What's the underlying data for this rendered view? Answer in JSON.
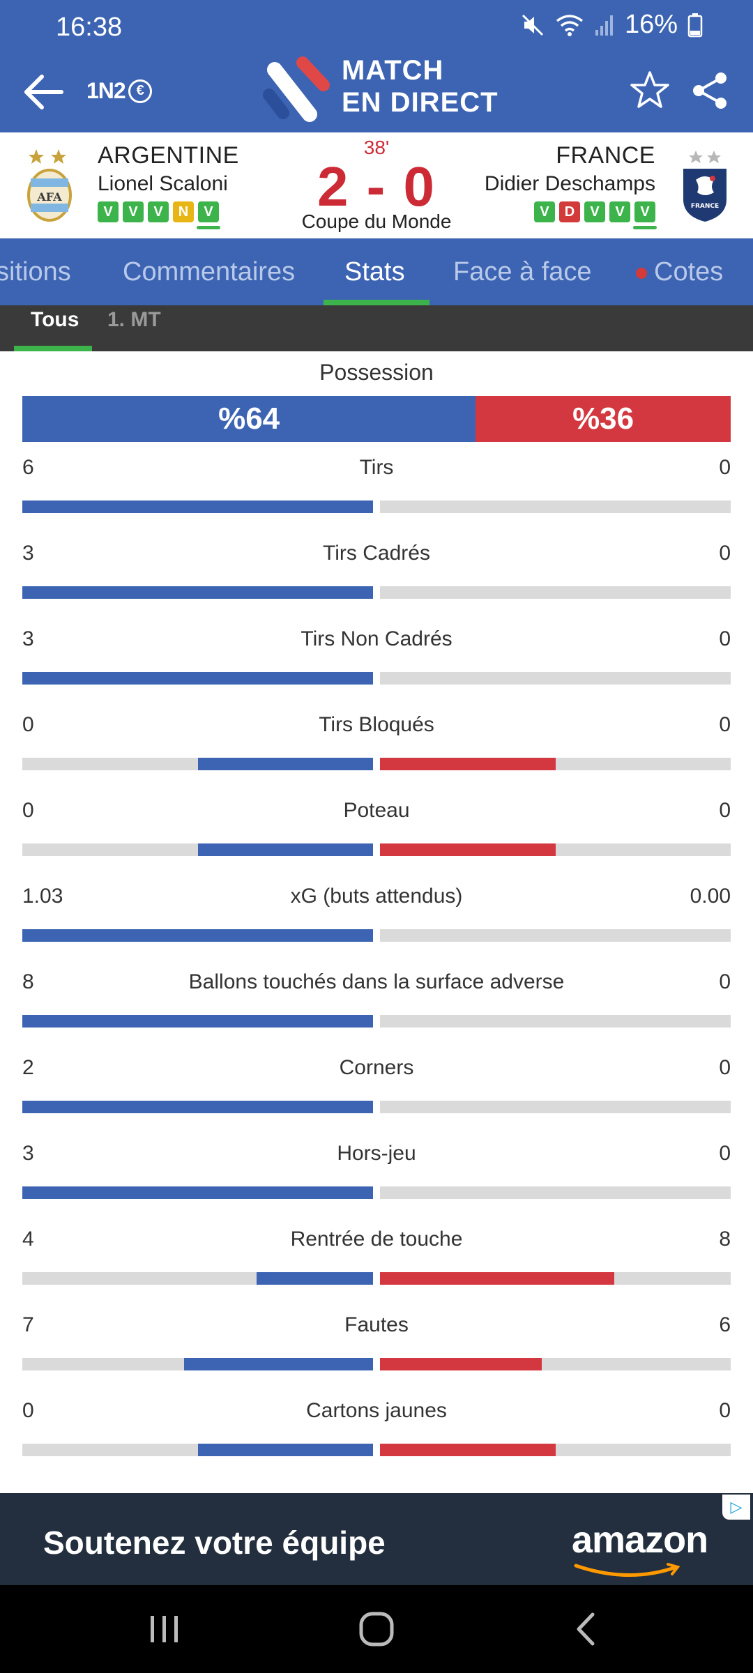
{
  "status_bar": {
    "time": "16:38",
    "battery": "16%"
  },
  "header": {
    "brand_small": "1N2",
    "coin_symbol": "€",
    "title_line1": "MATCH",
    "title_line2": "EN DIRECT"
  },
  "match": {
    "minute": "38'",
    "score": "2 - 0",
    "competition": "Coupe du Monde",
    "home": {
      "name": "ARGENTINE",
      "coach": "Lionel Scaloni",
      "form": [
        "V",
        "V",
        "V",
        "N",
        "V"
      ],
      "crest_text": "AFA"
    },
    "away": {
      "name": "FRANCE",
      "coach": "Didier Deschamps",
      "form": [
        "V",
        "D",
        "V",
        "V",
        "V"
      ],
      "crest_text": "FRANCE"
    }
  },
  "tabs": [
    "sitions",
    "Commentaires",
    "Stats",
    "Face à face",
    "Cotes"
  ],
  "active_tab": "Stats",
  "subtabs": [
    "Tous",
    "1. MT"
  ],
  "possession": {
    "label": "Possession",
    "home": "%64",
    "away": "%36",
    "home_pct": 64,
    "away_pct": 36
  },
  "stats": [
    {
      "label": "Tirs",
      "home": "6",
      "away": "0",
      "home_fill": 1.0,
      "away_fill": 0.0
    },
    {
      "label": "Tirs Cadrés",
      "home": "3",
      "away": "0",
      "home_fill": 1.0,
      "away_fill": 0.0
    },
    {
      "label": "Tirs Non Cadrés",
      "home": "3",
      "away": "0",
      "home_fill": 1.0,
      "away_fill": 0.0
    },
    {
      "label": "Tirs Bloqués",
      "home": "0",
      "away": "0",
      "home_fill": 0.5,
      "away_fill": 0.5
    },
    {
      "label": "Poteau",
      "home": "0",
      "away": "0",
      "home_fill": 0.5,
      "away_fill": 0.5
    },
    {
      "label": "xG (buts attendus)",
      "home": "1.03",
      "away": "0.00",
      "home_fill": 1.0,
      "away_fill": 0.0
    },
    {
      "label": "Ballons touchés dans la surface adverse",
      "home": "8",
      "away": "0",
      "home_fill": 1.0,
      "away_fill": 0.0
    },
    {
      "label": "Corners",
      "home": "2",
      "away": "0",
      "home_fill": 1.0,
      "away_fill": 0.0
    },
    {
      "label": "Hors-jeu",
      "home": "3",
      "away": "0",
      "home_fill": 1.0,
      "away_fill": 0.0
    },
    {
      "label": "Rentrée de touche",
      "home": "4",
      "away": "8",
      "home_fill": 0.333,
      "away_fill": 0.667
    },
    {
      "label": "Fautes",
      "home": "7",
      "away": "6",
      "home_fill": 0.538,
      "away_fill": 0.462
    },
    {
      "label": "Cartons jaunes",
      "home": "0",
      "away": "0",
      "home_fill": 0.5,
      "away_fill": 0.5
    }
  ],
  "ad": {
    "text": "Soutenez votre équipe",
    "brand": "amazon",
    "choice_icon": "adchoices-icon"
  },
  "colors": {
    "primary": "#3c64b2",
    "home_bar": "#3c64b2",
    "away_bar": "#d3373f",
    "accent_green": "#3cb44b",
    "score_red": "#cc2b36"
  }
}
